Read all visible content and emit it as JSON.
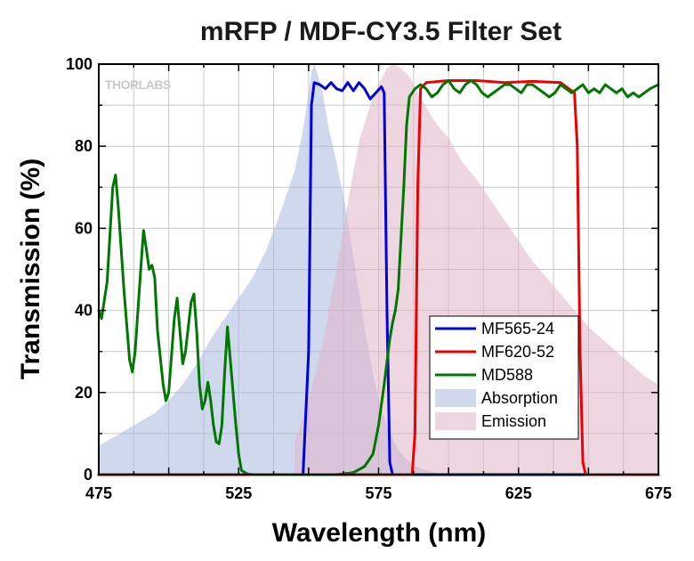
{
  "chart_data": {
    "type": "line",
    "title": "mRFP / MDF-CY3.5 Filter Set",
    "xlabel": "Wavelength (nm)",
    "ylabel": "Transmission (%)",
    "xlim": [
      475,
      675
    ],
    "ylim": [
      0,
      100
    ],
    "x_ticks": [
      "475",
      "525",
      "575",
      "625",
      "675"
    ],
    "y_ticks": [
      "0",
      "20",
      "40",
      "60",
      "80",
      "100"
    ],
    "grid": true,
    "watermark": "THORLABS",
    "legend_position": "bottom-right",
    "legend": [
      "MF565-24",
      "MF620-52",
      "MD588",
      "Absorption",
      "Emission"
    ],
    "series": [
      {
        "name": "MF565-24",
        "kind": "line",
        "color": "#0000dd",
        "points": [
          [
            475,
            0
          ],
          [
            548,
            0
          ],
          [
            550,
            30
          ],
          [
            551,
            90
          ],
          [
            552,
            95.5
          ],
          [
            554,
            95
          ],
          [
            556,
            94
          ],
          [
            558,
            95.5
          ],
          [
            560,
            94
          ],
          [
            562,
            93.5
          ],
          [
            564,
            95.5
          ],
          [
            566,
            93.5
          ],
          [
            568,
            95.5
          ],
          [
            570,
            94
          ],
          [
            572,
            91.5
          ],
          [
            574,
            93
          ],
          [
            576,
            94.5
          ],
          [
            577,
            93
          ],
          [
            578,
            40
          ],
          [
            579,
            3
          ],
          [
            580,
            0
          ],
          [
            675,
            0
          ]
        ]
      },
      {
        "name": "MF620-52",
        "kind": "line",
        "color": "#ee0000",
        "points": [
          [
            475,
            0
          ],
          [
            587,
            0
          ],
          [
            588,
            10
          ],
          [
            589,
            70
          ],
          [
            590,
            94
          ],
          [
            592,
            95.5
          ],
          [
            600,
            96
          ],
          [
            610,
            96
          ],
          [
            620,
            95.5
          ],
          [
            630,
            95.8
          ],
          [
            640,
            95.5
          ],
          [
            643,
            94
          ],
          [
            645,
            93
          ],
          [
            646,
            80
          ],
          [
            647,
            30
          ],
          [
            648,
            3
          ],
          [
            649,
            0
          ],
          [
            675,
            0
          ]
        ]
      },
      {
        "name": "MD588",
        "kind": "line",
        "color": "#007700",
        "points": [
          [
            475,
            40
          ],
          [
            476,
            38
          ],
          [
            478,
            47
          ],
          [
            480,
            70
          ],
          [
            481,
            73
          ],
          [
            482,
            65
          ],
          [
            484,
            45
          ],
          [
            486,
            28
          ],
          [
            487,
            25
          ],
          [
            488,
            30
          ],
          [
            490,
            50
          ],
          [
            491,
            59.5
          ],
          [
            492,
            55
          ],
          [
            493,
            50
          ],
          [
            494,
            51
          ],
          [
            495,
            48
          ],
          [
            496,
            35
          ],
          [
            498,
            22
          ],
          [
            499,
            18
          ],
          [
            500,
            20
          ],
          [
            502,
            38
          ],
          [
            503,
            43
          ],
          [
            504,
            35
          ],
          [
            505,
            27
          ],
          [
            506,
            30
          ],
          [
            508,
            42
          ],
          [
            509,
            44
          ],
          [
            510,
            35
          ],
          [
            511,
            22
          ],
          [
            512,
            16
          ],
          [
            513,
            18
          ],
          [
            514,
            22.5
          ],
          [
            515,
            18
          ],
          [
            516,
            12
          ],
          [
            517,
            8
          ],
          [
            518,
            7.5
          ],
          [
            519,
            12
          ],
          [
            520,
            25
          ],
          [
            521,
            36
          ],
          [
            522,
            28
          ],
          [
            524,
            12
          ],
          [
            525,
            5
          ],
          [
            526,
            1
          ],
          [
            528,
            0.2
          ],
          [
            530,
            0
          ],
          [
            560,
            0
          ],
          [
            566,
            0.5
          ],
          [
            570,
            2
          ],
          [
            573,
            5
          ],
          [
            575,
            12
          ],
          [
            577,
            22
          ],
          [
            579,
            33
          ],
          [
            580,
            37
          ],
          [
            581,
            40
          ],
          [
            582,
            45
          ],
          [
            584,
            70
          ],
          [
            585,
            85
          ],
          [
            586,
            92
          ],
          [
            588,
            94
          ],
          [
            590,
            95
          ],
          [
            592,
            94
          ],
          [
            594,
            92
          ],
          [
            596,
            93
          ],
          [
            598,
            95
          ],
          [
            600,
            96
          ],
          [
            602,
            94
          ],
          [
            604,
            93
          ],
          [
            606,
            95
          ],
          [
            608,
            96
          ],
          [
            610,
            95
          ],
          [
            612,
            93
          ],
          [
            614,
            92
          ],
          [
            616,
            93
          ],
          [
            618,
            94
          ],
          [
            620,
            95
          ],
          [
            622,
            95
          ],
          [
            624,
            94
          ],
          [
            626,
            93
          ],
          [
            628,
            95
          ],
          [
            630,
            95
          ],
          [
            632,
            94
          ],
          [
            634,
            93
          ],
          [
            636,
            92
          ],
          [
            638,
            93
          ],
          [
            640,
            95
          ],
          [
            642,
            94
          ],
          [
            644,
            93
          ],
          [
            646,
            94
          ],
          [
            648,
            95
          ],
          [
            650,
            93
          ],
          [
            652,
            94
          ],
          [
            654,
            93
          ],
          [
            656,
            95
          ],
          [
            658,
            94
          ],
          [
            660,
            93
          ],
          [
            662,
            94
          ],
          [
            664,
            92
          ],
          [
            666,
            93
          ],
          [
            668,
            92
          ],
          [
            670,
            93
          ],
          [
            672,
            94
          ],
          [
            675,
            95
          ]
        ]
      },
      {
        "name": "Absorption",
        "kind": "area",
        "color": "#aab8e0",
        "points": [
          [
            475,
            7
          ],
          [
            480,
            9
          ],
          [
            485,
            11
          ],
          [
            490,
            13
          ],
          [
            495,
            15
          ],
          [
            500,
            18
          ],
          [
            505,
            22
          ],
          [
            510,
            27
          ],
          [
            515,
            33
          ],
          [
            520,
            38
          ],
          [
            525,
            43
          ],
          [
            530,
            48
          ],
          [
            535,
            55
          ],
          [
            540,
            64
          ],
          [
            545,
            74
          ],
          [
            548,
            84
          ],
          [
            550,
            93
          ],
          [
            551,
            98
          ],
          [
            552,
            100
          ],
          [
            553,
            98
          ],
          [
            555,
            93
          ],
          [
            557,
            85
          ],
          [
            560,
            76
          ],
          [
            563,
            66
          ],
          [
            566,
            53
          ],
          [
            569,
            40
          ],
          [
            572,
            28
          ],
          [
            575,
            18
          ],
          [
            578,
            12
          ],
          [
            582,
            6
          ],
          [
            586,
            3
          ],
          [
            590,
            1.5
          ],
          [
            595,
            0.5
          ],
          [
            600,
            0
          ]
        ]
      },
      {
        "name": "Emission",
        "kind": "area",
        "color": "#e0b4c8",
        "points": [
          [
            545,
            0
          ],
          [
            545,
            8
          ],
          [
            550,
            18
          ],
          [
            555,
            32
          ],
          [
            560,
            50
          ],
          [
            565,
            70
          ],
          [
            568,
            81
          ],
          [
            572,
            90
          ],
          [
            575,
            95
          ],
          [
            578,
            99
          ],
          [
            580,
            100
          ],
          [
            583,
            99
          ],
          [
            586,
            97
          ],
          [
            590,
            92
          ],
          [
            595,
            86
          ],
          [
            600,
            82
          ],
          [
            605,
            76
          ],
          [
            610,
            72
          ],
          [
            615,
            67
          ],
          [
            620,
            62
          ],
          [
            625,
            57
          ],
          [
            630,
            52
          ],
          [
            635,
            48
          ],
          [
            640,
            44
          ],
          [
            645,
            40
          ],
          [
            650,
            36
          ],
          [
            655,
            33
          ],
          [
            660,
            30
          ],
          [
            665,
            27
          ],
          [
            670,
            24
          ],
          [
            675,
            22
          ],
          [
            675,
            0
          ]
        ]
      }
    ]
  }
}
